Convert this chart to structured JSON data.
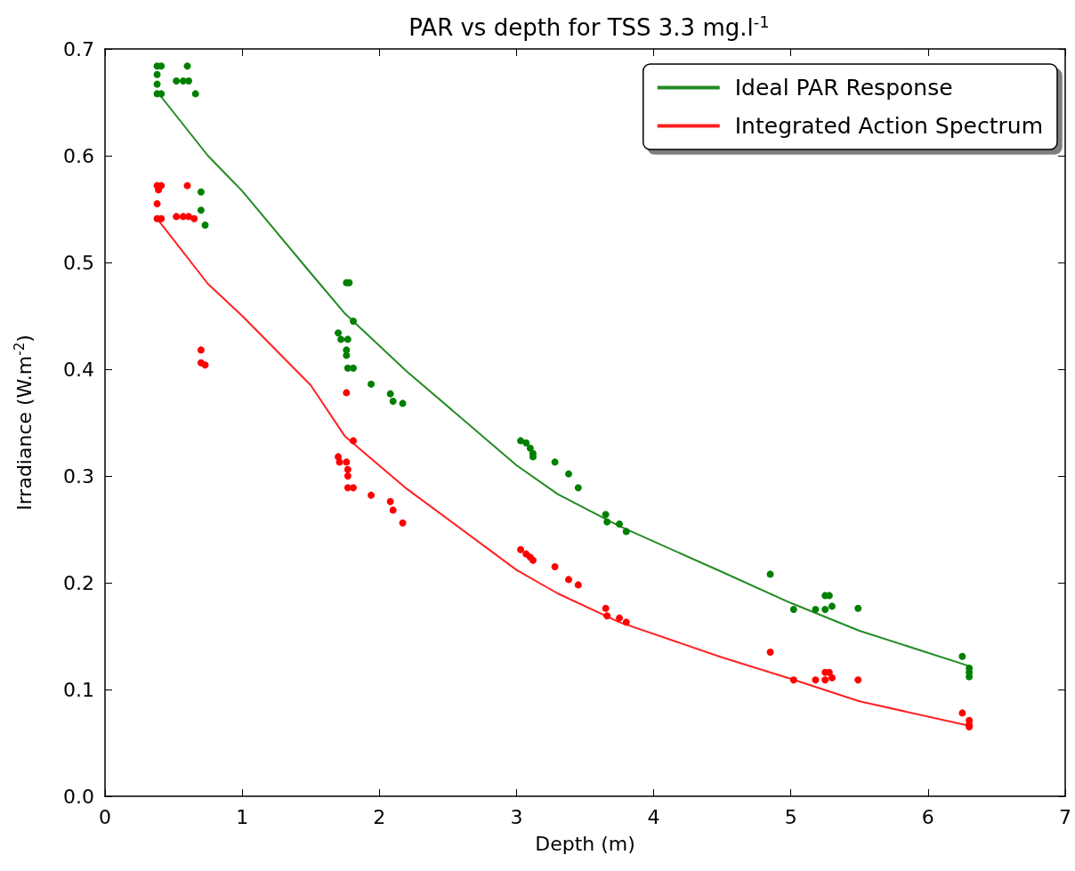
{
  "chart_data": {
    "type": "line",
    "title": "PAR vs depth for TSS 3.3 mg.l$^{-1}$",
    "xlabel": "Depth (m)",
    "ylabel": "Irradiance (W.m$^{-2}$)",
    "xlim": [
      0,
      7
    ],
    "xticks": [
      0,
      1,
      2,
      3,
      4,
      5,
      6,
      7
    ],
    "ylim": [
      0,
      0.7
    ],
    "yticks": [
      {
        "value": 0,
        "label": "0.0"
      },
      0.1,
      0.2,
      0.3,
      0.4,
      0.5,
      0.6,
      0.7
    ],
    "grid": false,
    "legend": "top right",
    "series": [
      {
        "name": "Ideal PAR Response",
        "marker": "none",
        "line_style": "solid",
        "color": "#228b22",
        "x": [
          0.38,
          0.75,
          1.0,
          1.5,
          1.75,
          2.2,
          3.0,
          3.3,
          3.75,
          4.5,
          5.0,
          5.5,
          6.3
        ],
        "values": [
          0.66,
          0.6,
          0.567,
          0.49,
          0.452,
          0.398,
          0.31,
          0.283,
          0.253,
          0.21,
          0.181,
          0.155,
          0.122
        ]
      },
      {
        "name": "Integrated Action Spectrum",
        "marker": "none",
        "line_style": "solid",
        "color": "#ff2020",
        "x": [
          0.38,
          0.75,
          1.0,
          1.5,
          1.75,
          2.2,
          3.0,
          3.3,
          3.75,
          4.5,
          5.0,
          5.5,
          6.3
        ],
        "values": [
          0.541,
          0.48,
          0.45,
          0.385,
          0.337,
          0.288,
          0.212,
          0.19,
          0.163,
          0.13,
          0.11,
          0.089,
          0.066
        ]
      },
      {
        "type": "scatter",
        "marker": "circle",
        "color": "#008000",
        "x": [
          0.38,
          0.41,
          0.38,
          0.38,
          0.38,
          0.41,
          0.52,
          0.57,
          0.61,
          0.6,
          0.66,
          0.7,
          0.7,
          0.73,
          1.76,
          1.78,
          1.81,
          1.7,
          1.72,
          1.77,
          1.76,
          1.76,
          1.77,
          1.81,
          1.94,
          2.08,
          2.1,
          2.17,
          3.03,
          3.07,
          3.1,
          3.12,
          3.12,
          3.28,
          3.38,
          3.45,
          3.65,
          3.66,
          3.75,
          3.8,
          4.85,
          5.02,
          5.18,
          5.25,
          5.25,
          5.28,
          5.3,
          5.49,
          6.25,
          6.3,
          6.3,
          6.3
        ],
        "values": [
          0.684,
          0.684,
          0.676,
          0.667,
          0.658,
          0.658,
          0.67,
          0.67,
          0.67,
          0.684,
          0.658,
          0.566,
          0.549,
          0.535,
          0.481,
          0.481,
          0.445,
          0.434,
          0.428,
          0.428,
          0.418,
          0.413,
          0.401,
          0.401,
          0.386,
          0.377,
          0.37,
          0.368,
          0.333,
          0.331,
          0.326,
          0.321,
          0.318,
          0.313,
          0.302,
          0.289,
          0.264,
          0.257,
          0.255,
          0.248,
          0.208,
          0.175,
          0.175,
          0.175,
          0.188,
          0.188,
          0.178,
          0.176,
          0.131,
          0.12,
          0.116,
          0.112
        ]
      },
      {
        "type": "scatter",
        "marker": "circle",
        "color": "#ff0000",
        "x": [
          0.38,
          0.41,
          0.39,
          0.38,
          0.38,
          0.41,
          0.52,
          0.57,
          0.61,
          0.6,
          0.65,
          0.7,
          0.7,
          0.73,
          1.76,
          1.81,
          1.7,
          1.71,
          1.76,
          1.77,
          1.77,
          1.77,
          1.81,
          1.94,
          2.08,
          2.1,
          2.17,
          3.03,
          3.07,
          3.1,
          3.12,
          3.28,
          3.38,
          3.45,
          3.65,
          3.66,
          3.75,
          3.8,
          4.85,
          5.02,
          5.18,
          5.25,
          5.25,
          5.28,
          5.3,
          5.49,
          6.25,
          6.3,
          6.3,
          6.3
        ],
        "values": [
          0.572,
          0.572,
          0.568,
          0.555,
          0.541,
          0.541,
          0.543,
          0.543,
          0.543,
          0.572,
          0.541,
          0.418,
          0.406,
          0.404,
          0.378,
          0.333,
          0.318,
          0.313,
          0.313,
          0.306,
          0.3,
          0.289,
          0.289,
          0.282,
          0.276,
          0.268,
          0.256,
          0.231,
          0.227,
          0.224,
          0.221,
          0.215,
          0.203,
          0.198,
          0.176,
          0.169,
          0.167,
          0.163,
          0.135,
          0.109,
          0.109,
          0.109,
          0.116,
          0.116,
          0.111,
          0.109,
          0.078,
          0.071,
          0.067,
          0.065
        ]
      }
    ]
  }
}
